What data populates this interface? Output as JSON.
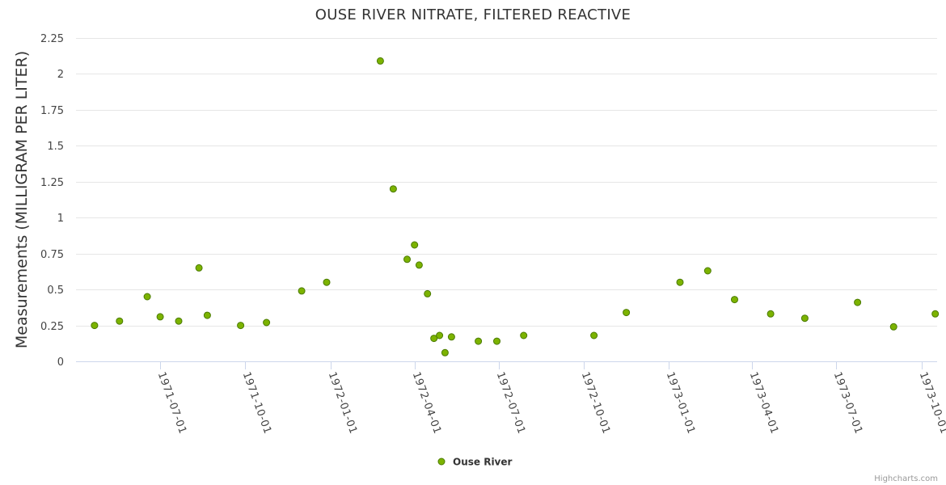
{
  "chart_data": {
    "type": "scatter",
    "title": "OUSE RIVER NITRATE, FILTERED REACTIVE",
    "ylabel": "Measurements (MILLIGRAM PER LITER)",
    "xlabel": "",
    "ylim": [
      0,
      2.25
    ],
    "xlim": [
      "1971-04-01",
      "1973-10-18"
    ],
    "y_ticks": [
      "0",
      "0.25",
      "0.5",
      "0.75",
      "1",
      "1.25",
      "1.5",
      "1.75",
      "2",
      "2.25"
    ],
    "x_ticks": [
      "1971-07-01",
      "1971-10-01",
      "1972-01-01",
      "1972-04-01",
      "1972-07-01",
      "1972-10-01",
      "1973-01-01",
      "1973-04-01",
      "1973-07-01",
      "1973-10-01"
    ],
    "grid": true,
    "legend_position": "bottom-center",
    "series": [
      {
        "name": "Ouse River",
        "color": "#7cb300",
        "stroke": "#4a7a00",
        "points": [
          {
            "date": "1971-04-21",
            "value": 0.25
          },
          {
            "date": "1971-05-18",
            "value": 0.28
          },
          {
            "date": "1971-06-17",
            "value": 0.45
          },
          {
            "date": "1971-07-01",
            "value": 0.31
          },
          {
            "date": "1971-07-21",
            "value": 0.28
          },
          {
            "date": "1971-08-12",
            "value": 0.65
          },
          {
            "date": "1971-08-21",
            "value": 0.32
          },
          {
            "date": "1971-09-26",
            "value": 0.25
          },
          {
            "date": "1971-10-24",
            "value": 0.27
          },
          {
            "date": "1971-12-01",
            "value": 0.49
          },
          {
            "date": "1971-12-28",
            "value": 0.55
          },
          {
            "date": "1972-02-24",
            "value": 2.09
          },
          {
            "date": "1972-03-09",
            "value": 1.2
          },
          {
            "date": "1972-03-24",
            "value": 0.71
          },
          {
            "date": "1972-04-01",
            "value": 0.81
          },
          {
            "date": "1972-04-06",
            "value": 0.67
          },
          {
            "date": "1972-04-15",
            "value": 0.47
          },
          {
            "date": "1972-04-22",
            "value": 0.16
          },
          {
            "date": "1972-04-28",
            "value": 0.18
          },
          {
            "date": "1972-05-04",
            "value": 0.06
          },
          {
            "date": "1972-05-11",
            "value": 0.17
          },
          {
            "date": "1972-06-09",
            "value": 0.14
          },
          {
            "date": "1972-06-29",
            "value": 0.14
          },
          {
            "date": "1972-07-28",
            "value": 0.18
          },
          {
            "date": "1972-10-12",
            "value": 0.18
          },
          {
            "date": "1972-11-16",
            "value": 0.34
          },
          {
            "date": "1973-01-13",
            "value": 0.55
          },
          {
            "date": "1973-02-12",
            "value": 0.63
          },
          {
            "date": "1973-03-13",
            "value": 0.43
          },
          {
            "date": "1973-04-21",
            "value": 0.33
          },
          {
            "date": "1973-05-28",
            "value": 0.3
          },
          {
            "date": "1973-07-24",
            "value": 0.41
          },
          {
            "date": "1973-09-01",
            "value": 0.24
          },
          {
            "date": "1973-10-16",
            "value": 0.33
          }
        ]
      }
    ]
  },
  "legend": {
    "label": "Ouse River"
  },
  "credits": "Highcharts.com"
}
